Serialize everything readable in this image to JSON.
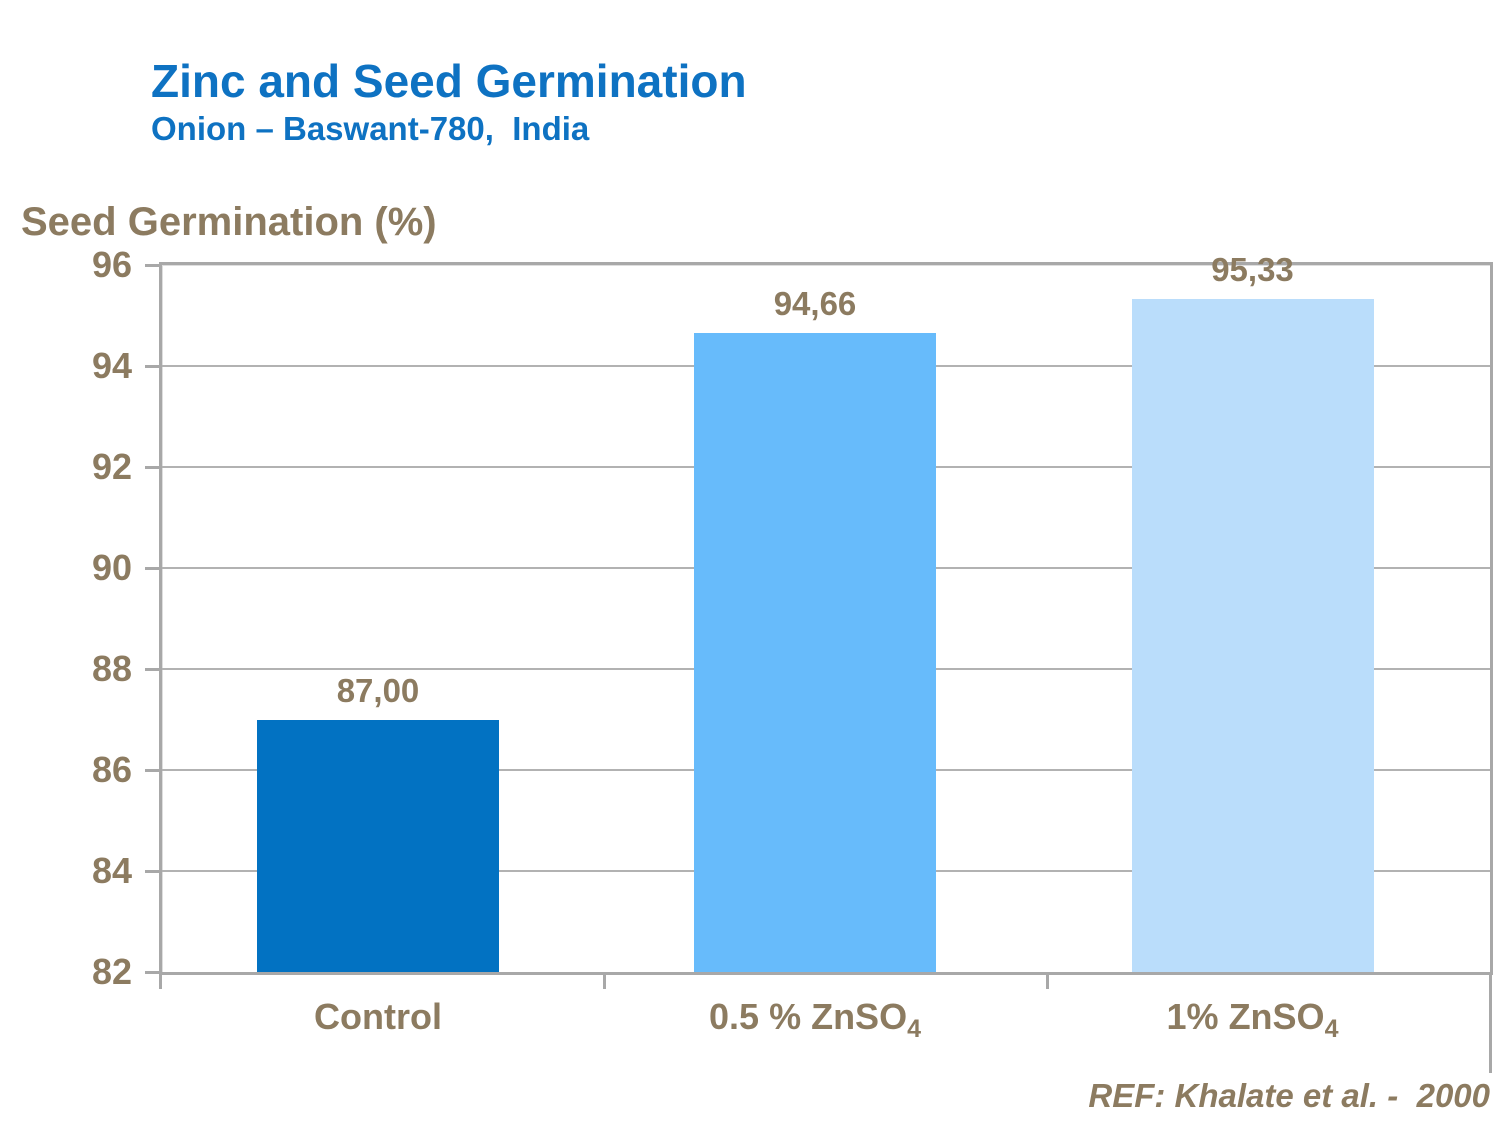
{
  "header": {
    "title": "Zinc and Seed Germination",
    "subtitle": "Onion – Baswant-780,  India"
  },
  "footer": {
    "reference": "REF: Khalate et al. -  2000"
  },
  "colors": {
    "title_blue": "#0E72C2",
    "text_brown": "#8C7B60",
    "frame_gray": "#A8A8A8",
    "gridline_gray": "#B2B2B2",
    "bar_colors": [
      "#0272C2",
      "#67BBFB",
      "#BADDFB"
    ]
  },
  "chart_data": {
    "type": "bar",
    "title": "Zinc and Seed Germination",
    "subtitle": "Onion – Baswant-780,  India",
    "y_axis_title": "Seed Germination (%)",
    "categories": [
      {
        "label": "Control",
        "sub": ""
      },
      {
        "label": "0.5 % ZnSO",
        "sub": "4"
      },
      {
        "label": "1% ZnSO",
        "sub": "4"
      }
    ],
    "values": [
      87.0,
      94.66,
      95.33
    ],
    "value_labels": [
      "87,00",
      "94,66",
      "95,33"
    ],
    "ylim": [
      82,
      96
    ],
    "ytick_step": 2,
    "grid": true,
    "legend": "none",
    "xlabel": "",
    "ylabel": "Seed Germination (%)"
  }
}
